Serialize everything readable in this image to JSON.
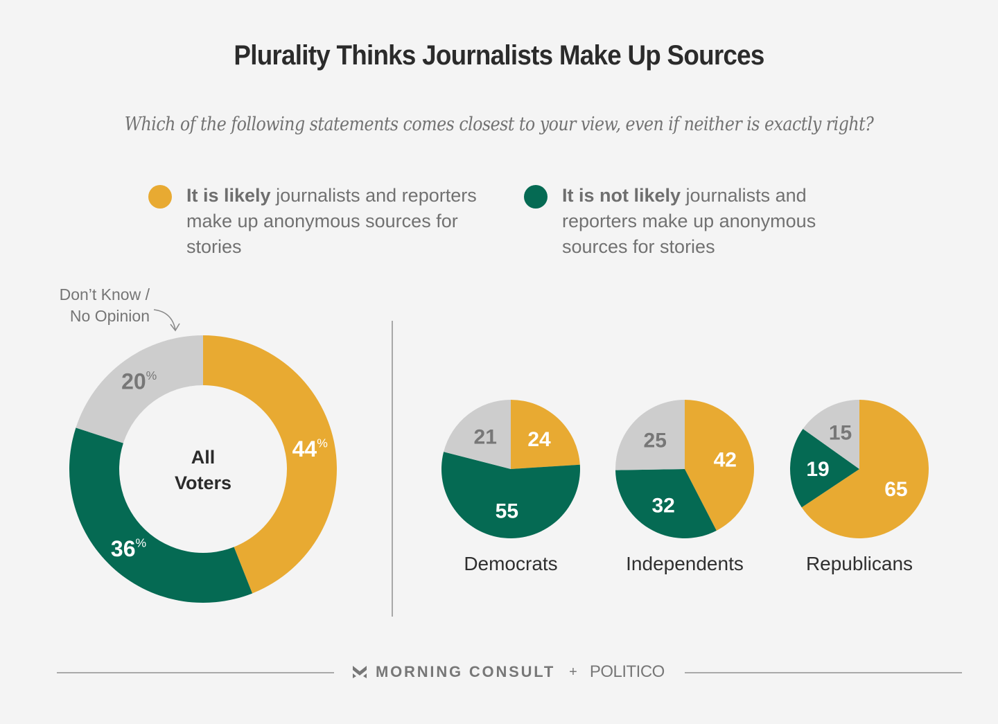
{
  "title": "Plurality Thinks Journalists Make Up Sources",
  "subtitle": "Which of the following statements comes closest to your view, even if neither is exactly right?",
  "colors": {
    "likely": "#e8aa32",
    "not_likely": "#056a53",
    "dont_know": "#cdcdcd",
    "background": "#f4f4f4"
  },
  "legend": [
    {
      "bold": "It is likely",
      "rest": " journalists and reporters make up anonymous sources for stories",
      "color": "#e8aa32"
    },
    {
      "bold": "It is not likely",
      "rest": " journalists and reporters make up anonymous sources for stories",
      "color": "#056a53"
    }
  ],
  "annotation": {
    "line1": "Don’t Know /",
    "line2": "No Opinion"
  },
  "chart_data": [
    {
      "type": "pie",
      "variant": "donut",
      "title": "All Voters",
      "center_label": [
        "All",
        "Voters"
      ],
      "categories": [
        "It is likely",
        "It is not likely",
        "Don't Know / No Opinion"
      ],
      "values": [
        44,
        36,
        20
      ],
      "labels": [
        "44",
        "36",
        "20"
      ],
      "unit": "%"
    },
    {
      "type": "pie",
      "title": "Democrats",
      "categories": [
        "It is likely",
        "It is not likely",
        "Don't Know / No Opinion"
      ],
      "values": [
        24,
        55,
        21
      ],
      "labels": [
        "24",
        "55",
        "21"
      ]
    },
    {
      "type": "pie",
      "title": "Independents",
      "categories": [
        "It is likely",
        "It is not likely",
        "Don't Know / No Opinion"
      ],
      "values": [
        42,
        32,
        25
      ],
      "labels": [
        "42",
        "32",
        "25"
      ]
    },
    {
      "type": "pie",
      "title": "Republicans",
      "categories": [
        "It is likely",
        "It is not likely",
        "Don't Know / No Opinion"
      ],
      "values": [
        65,
        19,
        15
      ],
      "labels": [
        "65",
        "19",
        "15"
      ]
    }
  ],
  "footer": {
    "brand1": "MORNING CONSULT",
    "plus": "+",
    "brand2": "POLITICO"
  }
}
